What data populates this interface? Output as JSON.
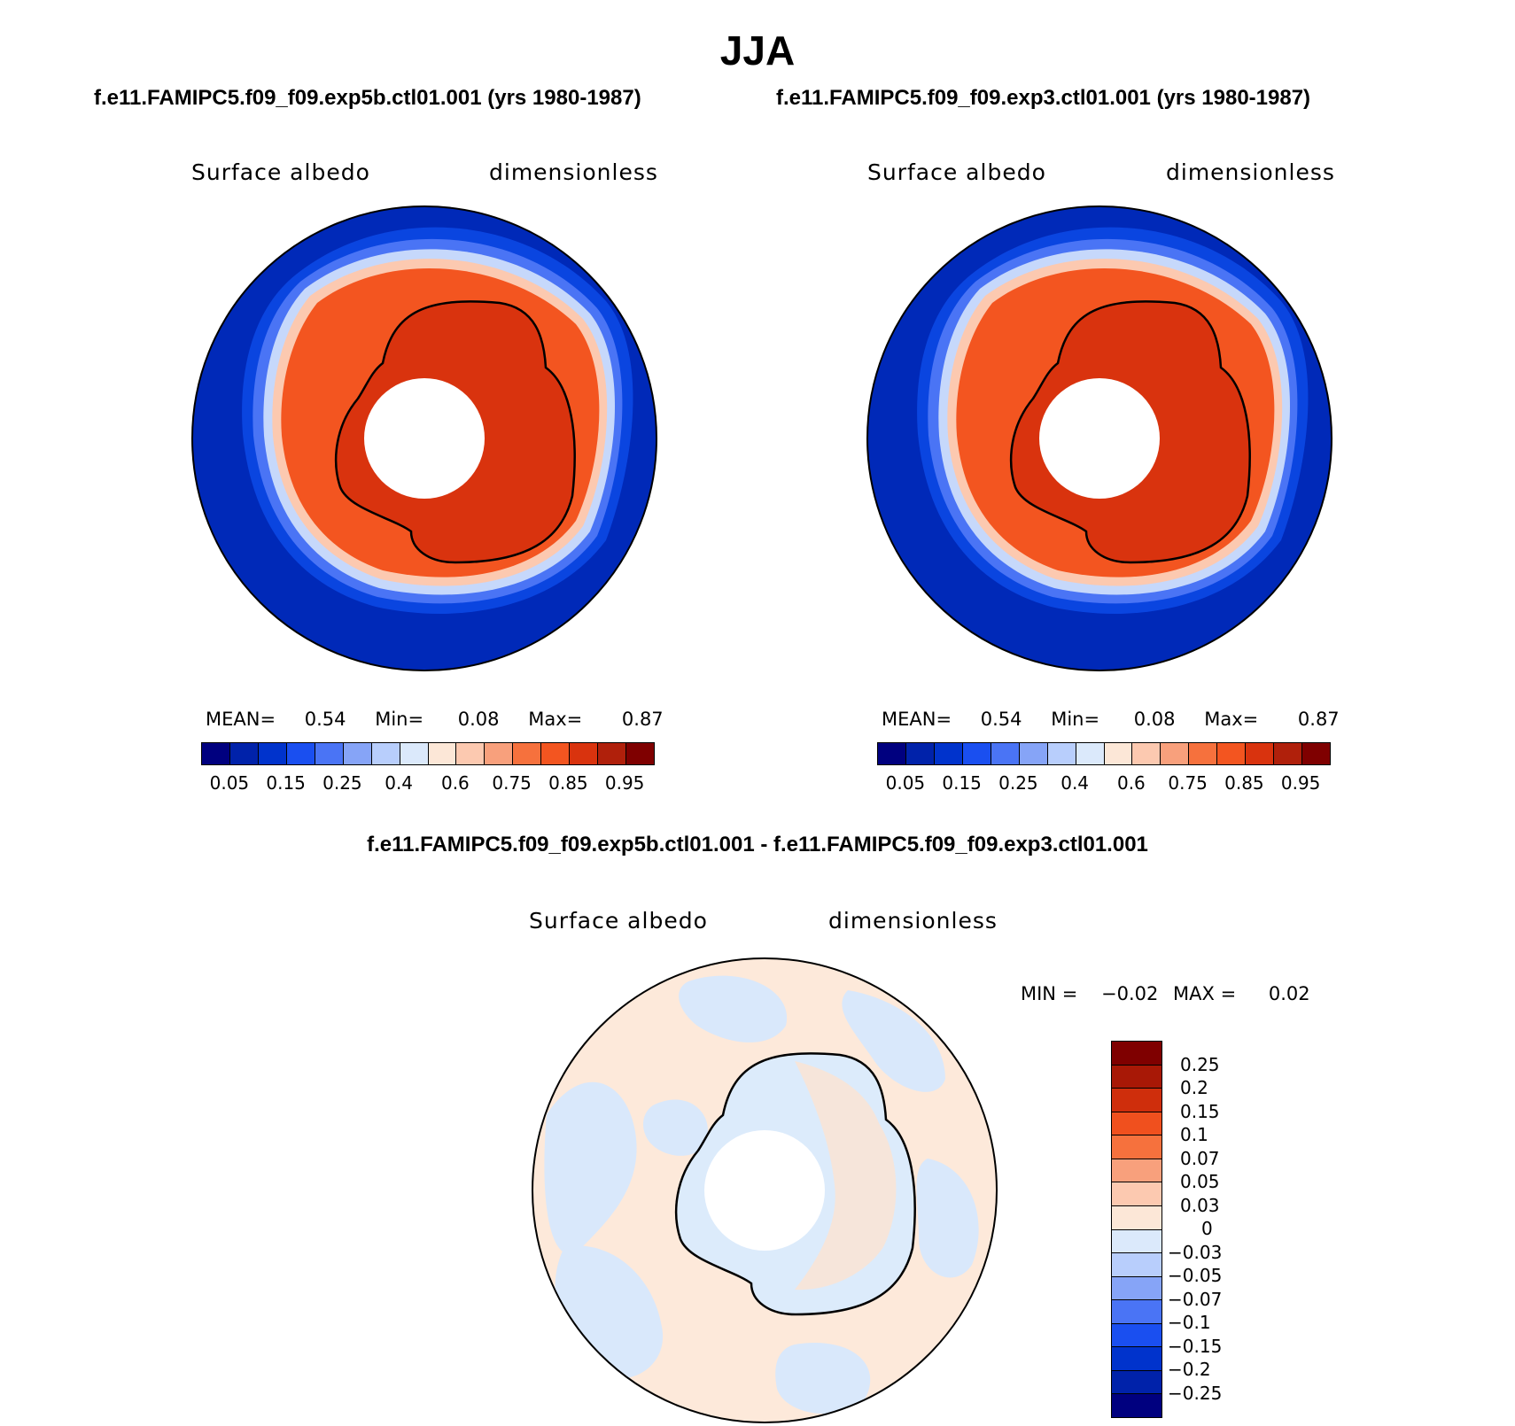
{
  "season": "JJA",
  "panels": {
    "left": {
      "case": "f.e11.FAMIPC5.f09_f09.exp5b.ctl01.001 (yrs 1980-1987)",
      "variable": "Surface albedo",
      "units": "dimensionless",
      "mean_label": "MEAN=",
      "mean": "0.54",
      "min_label": "Min=",
      "min": "0.08",
      "max_label": "Max=",
      "max": "0.87"
    },
    "right": {
      "case": "f.e11.FAMIPC5.f09_f09.exp3.ctl01.001 (yrs 1980-1987)",
      "variable": "Surface albedo",
      "units": "dimensionless",
      "mean_label": "MEAN=",
      "mean": "0.54",
      "min_label": "Min=",
      "min": "0.08",
      "max_label": "Max=",
      "max": "0.87"
    },
    "diff": {
      "title": "f.e11.FAMIPC5.f09_f09.exp5b.ctl01.001 - f.e11.FAMIPC5.f09_f09.exp3.ctl01.001",
      "variable": "Surface albedo",
      "units": "dimensionless",
      "min_label": "MIN =",
      "min": "−0.02",
      "max_label": "MAX =",
      "max": "0.02"
    }
  },
  "colorbar_abs": {
    "colors": [
      "#00007f",
      "#0022aa",
      "#0033cc",
      "#1a4ff0",
      "#4a74f5",
      "#86a4f7",
      "#b8cefc",
      "#dbe9fb",
      "#fce7d7",
      "#fcc9b0",
      "#f8a07c",
      "#f6713d",
      "#f35520",
      "#d9330e",
      "#b0200b",
      "#7f0000"
    ],
    "ticks": [
      "0.05",
      "0.15",
      "0.25",
      "0.4",
      "0.6",
      "0.75",
      "0.85",
      "0.95"
    ]
  },
  "colorbar_diff": {
    "colors": [
      "#7f0000",
      "#a81806",
      "#cf2e0c",
      "#f0501e",
      "#f6713d",
      "#f8a07c",
      "#fcc9b0",
      "#fce7d7",
      "#dbe9fb",
      "#b8cefc",
      "#86a4f7",
      "#4a74f5",
      "#1a4ff0",
      "#0033cc",
      "#0022aa",
      "#00007f"
    ],
    "ticks": [
      "0.25",
      "0.2",
      "0.15",
      "0.1",
      "0.07",
      "0.05",
      "0.03",
      "0",
      "−0.03",
      "−0.05",
      "−0.07",
      "−0.1",
      "−0.15",
      "−0.2",
      "−0.25"
    ]
  }
}
